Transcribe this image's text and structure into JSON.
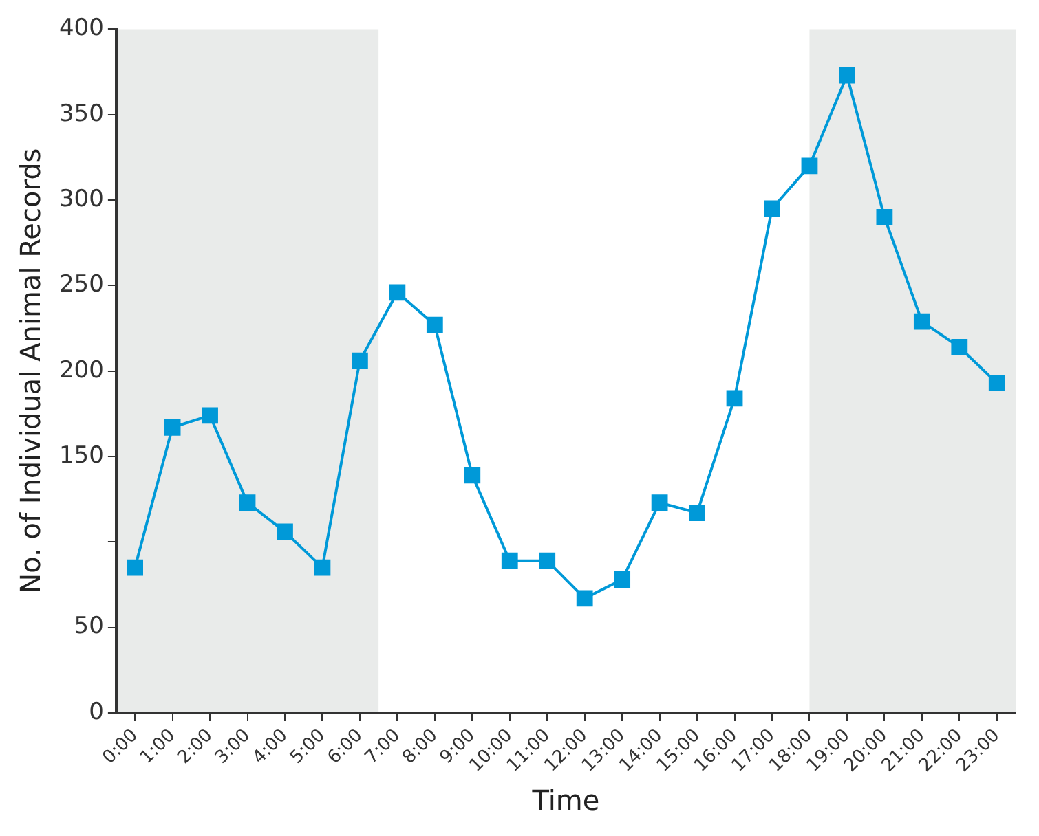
{
  "chart_data": {
    "type": "line",
    "xlabel": "Time",
    "ylabel": "No. of Individual Animal Records",
    "x": [
      0,
      1,
      2,
      3,
      4,
      5,
      6,
      7,
      8,
      9,
      10,
      11,
      12,
      13,
      14,
      15,
      16,
      17,
      18,
      19,
      20,
      21,
      22,
      23
    ],
    "series": [
      {
        "color": "#0099d8",
        "values": [
          85,
          167,
          174,
          123,
          106,
          85,
          206,
          246,
          227,
          139,
          89,
          89,
          67,
          78,
          123,
          117,
          184,
          295,
          320,
          373,
          290,
          229,
          214,
          193
        ]
      }
    ],
    "xlim": [
      -0.5,
      23.5
    ],
    "xticks": [
      {
        "value": 0,
        "label": "0:00"
      },
      {
        "value": 1,
        "label": "1:00"
      },
      {
        "value": 2,
        "label": "2:00"
      },
      {
        "value": 3,
        "label": "3:00"
      },
      {
        "value": 4,
        "label": "4:00"
      },
      {
        "value": 5,
        "label": "5:00"
      },
      {
        "value": 6,
        "label": "6:00"
      },
      {
        "value": 7,
        "label": "7:00"
      },
      {
        "value": 8,
        "label": "8:00"
      },
      {
        "value": 9,
        "label": "9:00"
      },
      {
        "value": 10,
        "label": "10:00"
      },
      {
        "value": 11,
        "label": "11:00"
      },
      {
        "value": 12,
        "label": "12:00"
      },
      {
        "value": 13,
        "label": "13:00"
      },
      {
        "value": 14,
        "label": "14:00"
      },
      {
        "value": 15,
        "label": "15:00"
      },
      {
        "value": 16,
        "label": "16:00"
      },
      {
        "value": 17,
        "label": "17:00"
      },
      {
        "value": 18,
        "label": "18:00"
      },
      {
        "value": 19,
        "label": "19:00"
      },
      {
        "value": 20,
        "label": "20:00"
      },
      {
        "value": 21,
        "label": "21:00"
      },
      {
        "value": 22,
        "label": "22:00"
      },
      {
        "value": 23,
        "label": "23:00"
      }
    ],
    "ylim": [
      0,
      400
    ],
    "yticks": [
      0,
      50,
      {
        "value": 100,
        "label": null
      },
      150,
      200,
      250,
      300,
      350,
      400
    ],
    "bands": [
      {
        "axis": "x",
        "from": -0.5,
        "to": 6.5,
        "color": "#e9ebea"
      },
      {
        "axis": "x",
        "from": 18,
        "to": 23.5,
        "color": "#e9ebea"
      }
    ],
    "grid": false,
    "legend": false,
    "marker": "square",
    "line_style": "solid"
  }
}
